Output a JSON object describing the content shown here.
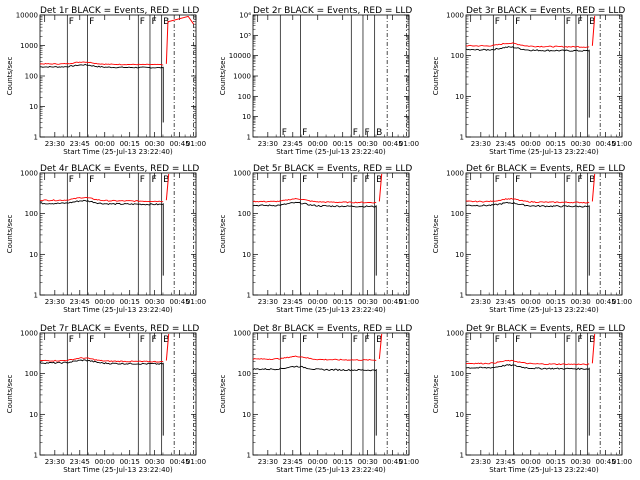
{
  "colors": {
    "events": "#000000",
    "lld": "#ff0000",
    "axes": "#000000"
  },
  "common": {
    "xlabel": "Start Time (25-Jul-13 23:22:40)",
    "ylabel": "Counts/sec",
    "xticks": [
      "23:30",
      "23:45",
      "00:00",
      "00:15",
      "00:30",
      "00:45",
      "01:00"
    ]
  },
  "chart_data": [
    {
      "type": "line",
      "title": "Det 1r BLACK = Events, RED = LLD",
      "ylim": [
        1,
        10000
      ],
      "ytick_exps": [
        0,
        1,
        2,
        3,
        4
      ],
      "yscale": "log",
      "events": 200,
      "lld": 250,
      "flare": "strong",
      "flags": [
        "F",
        "F",
        "F",
        "F",
        "B"
      ],
      "series": [
        {
          "name": "BLACK = Events"
        },
        {
          "name": "RED = LLD"
        }
      ]
    },
    {
      "type": "line",
      "title": "Det 2r BLACK = Events, RED = LLD",
      "ylim": [
        1,
        1000000
      ],
      "ytick_exps": [
        0,
        1,
        2,
        3,
        4,
        5,
        6
      ],
      "yscale": "log",
      "events": null,
      "lld": null,
      "flare": "none",
      "flags": [
        "F",
        "F",
        "F",
        "F",
        "B"
      ],
      "series": [
        {
          "name": "BLACK = Events"
        },
        {
          "name": "RED = LLD"
        }
      ]
    },
    {
      "type": "line",
      "title": "Det 3r BLACK = Events, RED = LLD",
      "ylim": [
        1,
        1000
      ],
      "ytick_exps": [
        0,
        1,
        2,
        3
      ],
      "yscale": "log",
      "events": 140,
      "lld": 175,
      "flare": "weak",
      "flags": [
        "F",
        "F",
        "F",
        "F",
        "B"
      ],
      "series": [
        {
          "name": "BLACK = Events"
        },
        {
          "name": "RED = LLD"
        }
      ]
    },
    {
      "type": "line",
      "title": "Det 4r BLACK = Events, RED = LLD",
      "ylim": [
        1,
        1000
      ],
      "ytick_exps": [
        0,
        1,
        2,
        3
      ],
      "yscale": "log",
      "events": 180,
      "lld": 215,
      "flare": "weak",
      "flags": [
        "F",
        "F",
        "F",
        "F",
        "B"
      ],
      "series": [
        {
          "name": "BLACK = Events"
        },
        {
          "name": "RED = LLD"
        }
      ]
    },
    {
      "type": "line",
      "title": "Det 5r BLACK = Events, RED = LLD",
      "ylim": [
        1,
        1000
      ],
      "ytick_exps": [
        0,
        1,
        2,
        3
      ],
      "yscale": "log",
      "events": 160,
      "lld": 200,
      "flare": "weak",
      "flags": [
        "F",
        "F",
        "F",
        "F",
        "B"
      ],
      "series": [
        {
          "name": "BLACK = Events"
        },
        {
          "name": "RED = LLD"
        }
      ]
    },
    {
      "type": "line",
      "title": "Det 6r BLACK = Events, RED = LLD",
      "ylim": [
        1,
        1000
      ],
      "ytick_exps": [
        0,
        1,
        2,
        3
      ],
      "yscale": "log",
      "events": 160,
      "lld": 200,
      "flare": "weak",
      "flags": [
        "F",
        "F",
        "F",
        "F",
        "B"
      ],
      "series": [
        {
          "name": "BLACK = Events"
        },
        {
          "name": "RED = LLD"
        }
      ]
    },
    {
      "type": "line",
      "title": "Det 7r BLACK = Events, RED = LLD",
      "ylim": [
        1,
        1000
      ],
      "ytick_exps": [
        0,
        1,
        2,
        3
      ],
      "yscale": "log",
      "events": 185,
      "lld": 210,
      "flare": "weak",
      "flags": [
        "F",
        "F",
        "F",
        "F",
        "B"
      ],
      "series": [
        {
          "name": "BLACK = Events"
        },
        {
          "name": "RED = LLD"
        }
      ]
    },
    {
      "type": "line",
      "title": "Det 8r BLACK = Events, RED = LLD",
      "ylim": [
        1,
        1000
      ],
      "ytick_exps": [
        0,
        1,
        2,
        3
      ],
      "yscale": "log",
      "events": 130,
      "lld": 230,
      "flare": "weak",
      "flags": [
        "F",
        "F",
        "F",
        "F",
        "B"
      ],
      "series": [
        {
          "name": "BLACK = Events"
        },
        {
          "name": "RED = LLD"
        }
      ]
    },
    {
      "type": "line",
      "title": "Det 9r BLACK = Events, RED = LLD",
      "ylim": [
        1,
        1000
      ],
      "ytick_exps": [
        0,
        1,
        2,
        3
      ],
      "yscale": "log",
      "events": 140,
      "lld": 180,
      "flare": "weak",
      "flags": [
        "F",
        "F",
        "F",
        "F",
        "B"
      ],
      "series": [
        {
          "name": "BLACK = Events"
        },
        {
          "name": "RED = LLD"
        }
      ]
    }
  ]
}
